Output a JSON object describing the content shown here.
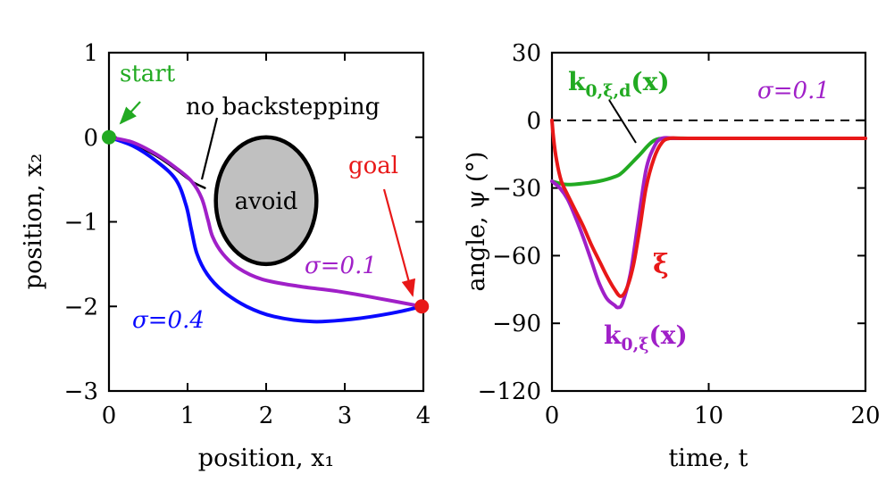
{
  "chart_data": [
    {
      "type": "line",
      "xlabel": "position, x₁",
      "ylabel": "position, x₂",
      "xlim": [
        0,
        4
      ],
      "ylim": [
        -3,
        1
      ],
      "xticks": [
        "0",
        "1",
        "2",
        "3",
        "4"
      ],
      "yticks": [
        "1",
        "0",
        "−1",
        "−2",
        "−3"
      ],
      "obstacle": {
        "label": "avoid",
        "center": [
          2.0,
          -0.75
        ],
        "rx": 0.64,
        "ry": 0.75
      },
      "annotations": {
        "start": "start",
        "goal": "goal",
        "no_backstepping": "no backstepping",
        "sigma_01": "σ=0.1",
        "sigma_04": "σ=0.4"
      },
      "points": {
        "start": [
          0,
          0
        ],
        "goal": [
          3.98,
          -2.0
        ]
      },
      "series": [
        {
          "name": "no backstepping",
          "color": "#000000",
          "x": [
            0.0,
            0.3,
            0.6,
            0.85,
            1.05,
            1.22
          ],
          "y": [
            0.0,
            -0.08,
            -0.22,
            -0.38,
            -0.52,
            -0.6
          ]
        },
        {
          "name": "σ=0.4",
          "color": "#0a0aff",
          "x": [
            0.0,
            0.3,
            0.6,
            0.85,
            0.98,
            1.05,
            1.12,
            1.25,
            1.45,
            1.75,
            2.1,
            2.6,
            3.1,
            3.6,
            3.98
          ],
          "y": [
            0.0,
            -0.1,
            -0.28,
            -0.5,
            -0.8,
            -1.1,
            -1.38,
            -1.62,
            -1.82,
            -2.0,
            -2.12,
            -2.18,
            -2.15,
            -2.08,
            -2.0
          ]
        },
        {
          "name": "σ=0.1",
          "color": "#a020c8",
          "x": [
            0.0,
            0.3,
            0.6,
            0.85,
            1.05,
            1.18,
            1.26,
            1.32,
            1.45,
            1.65,
            1.95,
            2.4,
            2.9,
            3.4,
            3.98
          ],
          "y": [
            0.0,
            -0.06,
            -0.2,
            -0.36,
            -0.52,
            -0.72,
            -0.98,
            -1.18,
            -1.38,
            -1.55,
            -1.68,
            -1.76,
            -1.82,
            -1.9,
            -2.0
          ]
        }
      ]
    },
    {
      "type": "line",
      "xlabel": "time, t",
      "ylabel": "angle, ψ (°)",
      "xlim": [
        0,
        20
      ],
      "ylim": [
        -120,
        30
      ],
      "xticks": [
        "0",
        "10",
        "20"
      ],
      "yticks": [
        "30",
        "0",
        "−30",
        "−60",
        "−90",
        "−120"
      ],
      "reference_line": {
        "y": 0,
        "style": "dashed"
      },
      "annotations": {
        "sigma": "σ=0.1",
        "k_d": {
          "main": "k",
          "sub": "0,ξ,d",
          "arg": "(x)"
        },
        "xi": "ξ",
        "k": {
          "main": "k",
          "sub": "0,ξ",
          "arg": "(x)"
        }
      },
      "series": [
        {
          "name": "k0,ξ,d(x)",
          "color": "#22aa22",
          "x": [
            0,
            0.5,
            1.0,
            2.0,
            3.0,
            4.0,
            4.5,
            5.5,
            6.5,
            7.5,
            9,
            12,
            16,
            20
          ],
          "y": [
            -27,
            -28,
            -28.5,
            -28,
            -27,
            -25,
            -23,
            -16,
            -9,
            -8,
            -8,
            -8,
            -8,
            -8
          ]
        },
        {
          "name": "k0,ξ(x)",
          "color": "#a020c8",
          "x": [
            0,
            0.5,
            1.0,
            1.5,
            2.0,
            2.5,
            3.0,
            3.5,
            4.0,
            4.2,
            4.5,
            5.0,
            5.5,
            6.0,
            6.5,
            7.0,
            8,
            12,
            16,
            20
          ],
          "y": [
            -27,
            -30,
            -35,
            -43,
            -52,
            -62,
            -72,
            -79,
            -82,
            -83,
            -81,
            -68,
            -45,
            -22,
            -12,
            -8,
            -8,
            -8,
            -8,
            -8
          ]
        },
        {
          "name": "ξ",
          "color": "#e81818",
          "x": [
            0,
            0.1,
            0.3,
            0.6,
            1.0,
            1.5,
            2.0,
            2.5,
            3.0,
            3.5,
            4.0,
            4.4,
            4.8,
            5.2,
            5.6,
            6.0,
            6.5,
            7.0,
            7.5,
            8.5,
            12,
            16,
            20
          ],
          "y": [
            0,
            -8,
            -18,
            -27,
            -33,
            -40,
            -47,
            -55,
            -62,
            -69,
            -75,
            -78,
            -74,
            -64,
            -48,
            -30,
            -17,
            -10,
            -8,
            -8,
            -8,
            -8,
            -8
          ]
        }
      ]
    }
  ]
}
